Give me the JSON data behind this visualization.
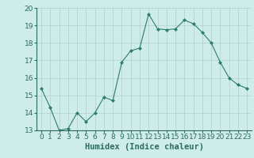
{
  "x": [
    0,
    1,
    2,
    3,
    4,
    5,
    6,
    7,
    8,
    9,
    10,
    11,
    12,
    13,
    14,
    15,
    16,
    17,
    18,
    19,
    20,
    21,
    22,
    23
  ],
  "y": [
    15.4,
    14.3,
    13.0,
    13.1,
    14.0,
    13.5,
    14.0,
    14.9,
    14.7,
    16.9,
    17.55,
    17.7,
    19.65,
    18.8,
    18.75,
    18.8,
    19.3,
    19.1,
    18.6,
    18.0,
    16.9,
    16.0,
    15.6,
    15.4
  ],
  "line_color": "#2d7d6f",
  "marker": "D",
  "marker_size": 2,
  "bg_color": "#ceecea",
  "grid_color": "#b0cfcd",
  "xlabel": "Humidex (Indice chaleur)",
  "ylim": [
    13,
    20
  ],
  "xlim": [
    -0.5,
    23.5
  ],
  "yticks": [
    13,
    14,
    15,
    16,
    17,
    18,
    19,
    20
  ],
  "xticks": [
    0,
    1,
    2,
    3,
    4,
    5,
    6,
    7,
    8,
    9,
    10,
    11,
    12,
    13,
    14,
    15,
    16,
    17,
    18,
    19,
    20,
    21,
    22,
    23
  ],
  "tick_color": "#2d6b60",
  "label_fontsize": 6.5,
  "xlabel_fontsize": 7.5
}
